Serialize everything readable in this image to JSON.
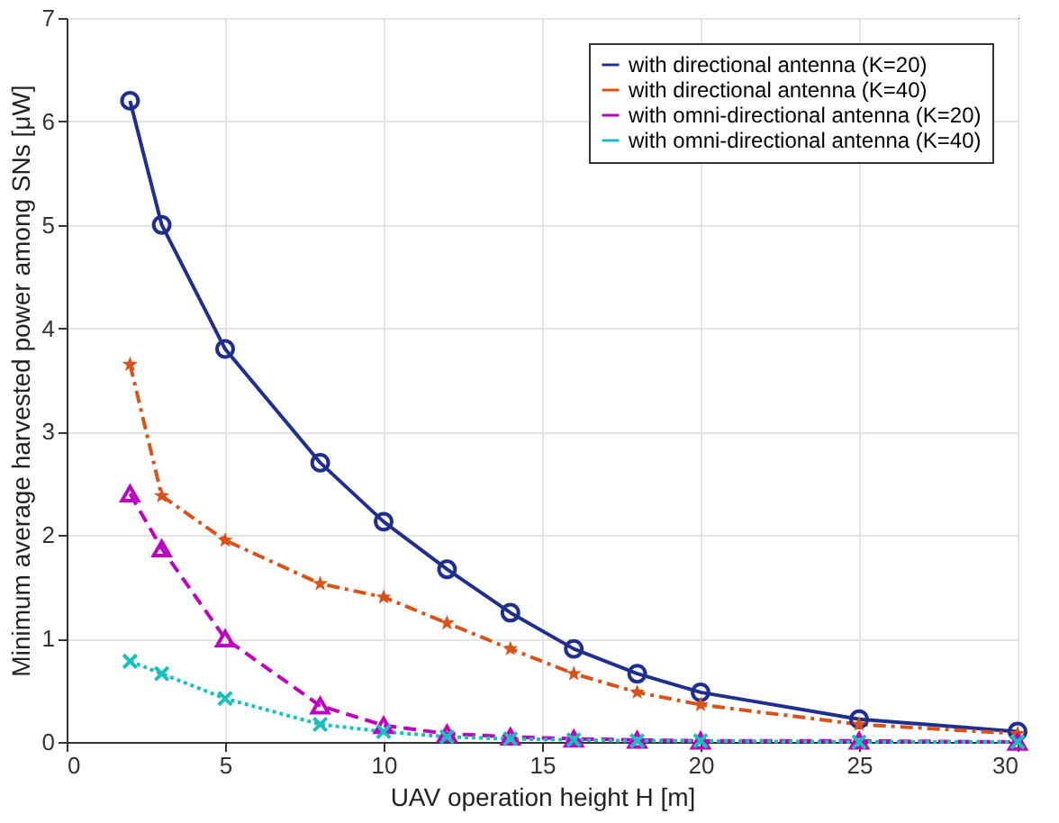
{
  "chart_data": {
    "type": "line",
    "xlabel": "UAV operation height H [m]",
    "ylabel": "Minimum average harvested power among SNs [μW]",
    "x": [
      2,
      3,
      5,
      8,
      10,
      12,
      14,
      16,
      18,
      20,
      25,
      30
    ],
    "series": [
      {
        "name": "with directional antenna (K=20)",
        "color": "#1f2f8f",
        "marker": "circle",
        "line_style": "solid",
        "values": [
          6.2,
          5.0,
          3.8,
          2.7,
          2.13,
          1.67,
          1.25,
          0.9,
          0.66,
          0.48,
          0.22,
          0.1
        ]
      },
      {
        "name": "with directional antenna (K=40)",
        "color": "#d95319",
        "marker": "star",
        "line_style": "dashdot",
        "values": [
          3.65,
          2.38,
          1.95,
          1.53,
          1.4,
          1.15,
          0.9,
          0.66,
          0.48,
          0.36,
          0.17,
          0.08
        ]
      },
      {
        "name": "with omni-directional antenna (K=20)",
        "color": "#c000c0",
        "marker": "triangle",
        "line_style": "dashed",
        "values": [
          2.4,
          1.87,
          1.0,
          0.35,
          0.16,
          0.08,
          0.05,
          0.03,
          0.02,
          0.01,
          0.01,
          0.0
        ]
      },
      {
        "name": "with omni-directional antenna (K=40)",
        "color": "#17bfbf",
        "marker": "cross",
        "line_style": "dotted",
        "values": [
          0.78,
          0.66,
          0.42,
          0.17,
          0.1,
          0.05,
          0.03,
          0.02,
          0.01,
          0.01,
          0.0,
          0.0
        ]
      }
    ],
    "xlim": [
      0,
      30
    ],
    "xticks": [
      0,
      5,
      10,
      15,
      20,
      25,
      30
    ],
    "ylim": [
      0,
      7
    ],
    "yticks": [
      0,
      1,
      2,
      3,
      4,
      5,
      6,
      7
    ],
    "grid": true,
    "legend": "top right"
  }
}
